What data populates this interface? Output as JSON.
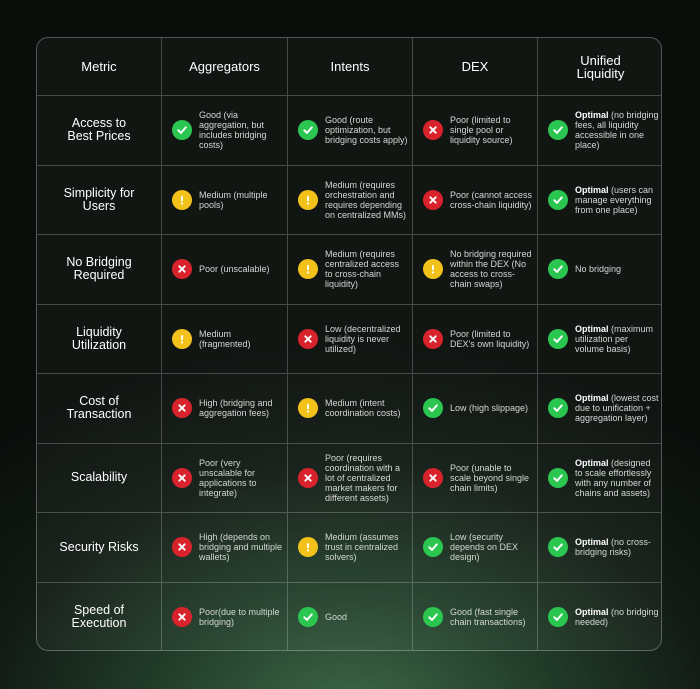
{
  "headers": [
    "Metric",
    "Aggregators",
    "Intents",
    "DEX",
    "Unified Liquidity"
  ],
  "rows": [
    {
      "metric": "Access to Best Prices",
      "cells": [
        {
          "status": "ok",
          "icon": "check-icon",
          "bold": "",
          "text": "Good (via aggregation, but includes bridging costs)"
        },
        {
          "status": "ok",
          "icon": "check-icon",
          "bold": "",
          "text": "Good (route optimization, but bridging costs apply)"
        },
        {
          "status": "bad",
          "icon": "cross-icon",
          "bold": "",
          "text": "Poor (limited to single pool or liquidity source)"
        },
        {
          "status": "ok",
          "icon": "check-icon",
          "bold": "Optimal",
          "text": " (no bridging fees, all liquidity accessible in one place)"
        }
      ]
    },
    {
      "metric": "Simplicity for Users",
      "cells": [
        {
          "status": "warn",
          "icon": "exclamation-icon",
          "bold": "",
          "text": "Medium (multiple pools)"
        },
        {
          "status": "warn",
          "icon": "exclamation-icon",
          "bold": "",
          "text": "Medium (requires orchestration and requires depending on centralized MMs)"
        },
        {
          "status": "bad",
          "icon": "cross-icon",
          "bold": "",
          "text": "Poor (cannot access cross-chain liquidity)"
        },
        {
          "status": "ok",
          "icon": "check-icon",
          "bold": "Optimal",
          "text": " (users can manage everything from one place)"
        }
      ]
    },
    {
      "metric": "No Bridging Required",
      "cells": [
        {
          "status": "bad",
          "icon": "cross-icon",
          "bold": "",
          "text": "Poor (unscalable)"
        },
        {
          "status": "warn",
          "icon": "exclamation-icon",
          "bold": "",
          "text": "Medium (requires centralized access to cross-chain liquidity)"
        },
        {
          "status": "warn",
          "icon": "exclamation-icon",
          "bold": "",
          "text": "No bridging required within the DEX (No access to cross-chain swaps)"
        },
        {
          "status": "ok",
          "icon": "check-icon",
          "bold": "",
          "text": "No bridging"
        }
      ]
    },
    {
      "metric": "Liquidity Utilization",
      "cells": [
        {
          "status": "warn",
          "icon": "exclamation-icon",
          "bold": "",
          "text": "Medium (fragmented)"
        },
        {
          "status": "bad",
          "icon": "cross-icon",
          "bold": "",
          "text": "Low (decentralized liquidity is never utilized)"
        },
        {
          "status": "bad",
          "icon": "cross-icon",
          "bold": "",
          "text": "Poor (limited to DEX's own liquidity)"
        },
        {
          "status": "ok",
          "icon": "check-icon",
          "bold": "Optimal",
          "text": " (maximum utilization per volume basis)"
        }
      ]
    },
    {
      "metric": "Cost of Transaction",
      "cells": [
        {
          "status": "bad",
          "icon": "cross-icon",
          "bold": "",
          "text": "High (bridging and aggregation fees)"
        },
        {
          "status": "warn",
          "icon": "exclamation-icon",
          "bold": "",
          "text": "Medium (intent coordination costs)"
        },
        {
          "status": "ok",
          "icon": "check-icon",
          "bold": "",
          "text": "Low (high slippage)"
        },
        {
          "status": "ok",
          "icon": "check-icon",
          "bold": "Optimal",
          "text": " (lowest cost due to unification + aggregation layer)"
        }
      ]
    },
    {
      "metric": "Scalability",
      "cells": [
        {
          "status": "bad",
          "icon": "cross-icon",
          "bold": "",
          "text": "Poor (very unscalable for applications to integrate)"
        },
        {
          "status": "bad",
          "icon": "cross-icon",
          "bold": "",
          "text": "Poor (requires coordination with a lot of centralized market makers for different assets)"
        },
        {
          "status": "bad",
          "icon": "cross-icon",
          "bold": "",
          "text": "Poor (unable to scale beyond single chain limits)"
        },
        {
          "status": "ok",
          "icon": "check-icon",
          "bold": "Optimal",
          "text": " (designed to scale effortlessly with any number of chains and assets)"
        }
      ]
    },
    {
      "metric": "Security Risks",
      "cells": [
        {
          "status": "bad",
          "icon": "cross-icon",
          "bold": "",
          "text": "High (depends on bridging and multiple wallets)"
        },
        {
          "status": "warn",
          "icon": "exclamation-icon",
          "bold": "",
          "text": "Medium (assumes trust in centralized solvers)"
        },
        {
          "status": "ok",
          "icon": "check-icon",
          "bold": "",
          "text": "Low (security depends on DEX design)"
        },
        {
          "status": "ok",
          "icon": "check-icon",
          "bold": "Optimal",
          "text": " (no cross-bridging risks)"
        }
      ]
    },
    {
      "metric": "Speed of Execution",
      "cells": [
        {
          "status": "bad",
          "icon": "cross-icon",
          "bold": "",
          "text": "Poor(due to multiple bridging)"
        },
        {
          "status": "ok",
          "icon": "check-icon",
          "bold": "",
          "text": "Good"
        },
        {
          "status": "ok",
          "icon": "check-icon",
          "bold": "",
          "text": "Good (fast single chain transactions)"
        },
        {
          "status": "ok",
          "icon": "check-icon",
          "bold": "Optimal",
          "text": " (no bridging needed)"
        }
      ]
    }
  ],
  "colors": {
    "ok": "#2bc650",
    "warn": "#f2c21a",
    "bad": "#d9232c"
  }
}
